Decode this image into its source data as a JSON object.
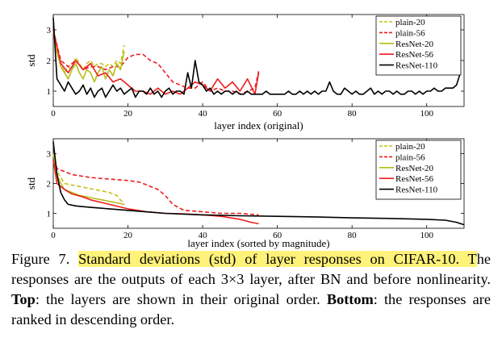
{
  "colors": {
    "plain20": "#c2c21c",
    "plain56": "#ee1c1c",
    "resnet20": "#b5bd1b",
    "resnet56": "#ee1c1c",
    "resnet110": "#000000",
    "highlight": "#fff27a"
  },
  "chart_data": [
    {
      "type": "line",
      "panel": "top",
      "xlabel": "layer index (original)",
      "ylabel": "std",
      "xlim": [
        0,
        110
      ],
      "ylim": [
        0.5,
        3.5
      ],
      "xticks": [
        0,
        20,
        40,
        60,
        80,
        100
      ],
      "yticks": [
        1,
        2,
        3
      ],
      "legend": [
        "plain-20",
        "plain-56",
        "ResNet-20",
        "ResNet-56",
        "ResNet-110"
      ],
      "legend_position": "top-right",
      "series": [
        {
          "name": "plain-20",
          "style": "dashed",
          "x": [
            0,
            1,
            2,
            3,
            4,
            5,
            6,
            7,
            8,
            9,
            10,
            11,
            12,
            13,
            14,
            15,
            16,
            17,
            18,
            19
          ],
          "y": [
            3.0,
            2.2,
            1.9,
            1.6,
            1.8,
            1.7,
            2.1,
            1.9,
            1.7,
            1.9,
            2.0,
            1.8,
            1.9,
            1.9,
            1.8,
            1.9,
            1.8,
            2.0,
            1.9,
            2.5
          ]
        },
        {
          "name": "plain-56",
          "style": "dashed",
          "x": [
            0,
            2,
            4,
            6,
            8,
            10,
            12,
            14,
            16,
            18,
            20,
            22,
            24,
            26,
            28,
            30,
            32,
            34,
            36,
            38,
            40,
            42,
            44,
            46,
            48,
            50,
            52,
            54,
            55
          ],
          "y": [
            3.0,
            2.0,
            1.8,
            2.0,
            1.7,
            1.8,
            1.8,
            1.7,
            1.8,
            1.8,
            2.1,
            2.2,
            2.2,
            2.0,
            1.9,
            1.6,
            1.3,
            1.2,
            1.1,
            1.1,
            1.3,
            1.0,
            1.1,
            1.0,
            1.0,
            0.9,
            1.0,
            1.1,
            1.65
          ]
        },
        {
          "name": "ResNet-20",
          "style": "solid",
          "x": [
            0,
            1,
            2,
            3,
            4,
            5,
            6,
            7,
            8,
            9,
            10,
            11,
            12,
            13,
            14,
            15,
            16,
            17,
            18,
            19
          ],
          "y": [
            3.0,
            2.3,
            1.8,
            1.6,
            1.4,
            1.7,
            1.9,
            1.6,
            1.4,
            1.7,
            1.6,
            1.3,
            1.6,
            1.8,
            1.4,
            1.7,
            1.5,
            1.9,
            1.7,
            2.3
          ]
        },
        {
          "name": "ResNet-56",
          "style": "solid",
          "x": [
            0,
            2,
            4,
            6,
            8,
            10,
            12,
            14,
            16,
            18,
            20,
            22,
            24,
            26,
            28,
            30,
            32,
            34,
            36,
            38,
            40,
            42,
            44,
            46,
            48,
            50,
            52,
            54,
            55
          ],
          "y": [
            3.0,
            1.9,
            1.6,
            2.0,
            1.7,
            1.9,
            1.5,
            1.6,
            1.3,
            1.4,
            1.2,
            1.0,
            1.0,
            0.9,
            1.1,
            0.9,
            1.0,
            0.9,
            1.1,
            1.3,
            1.2,
            1.0,
            1.4,
            1.1,
            1.3,
            1.0,
            1.4,
            0.9,
            1.6
          ]
        },
        {
          "name": "ResNet-110",
          "style": "solid",
          "x": [
            0,
            1,
            2,
            3,
            4,
            5,
            6,
            7,
            8,
            9,
            10,
            11,
            12,
            13,
            14,
            15,
            16,
            17,
            18,
            19,
            20,
            21,
            22,
            23,
            24,
            25,
            26,
            27,
            28,
            29,
            30,
            31,
            32,
            33,
            34,
            35,
            36,
            37,
            38,
            39,
            40,
            41,
            42,
            43,
            44,
            45,
            46,
            47,
            48,
            49,
            50,
            51,
            52,
            53,
            54,
            55,
            56,
            57,
            58,
            59,
            60,
            61,
            62,
            63,
            64,
            65,
            66,
            67,
            68,
            69,
            70,
            71,
            72,
            73,
            74,
            75,
            76,
            77,
            78,
            79,
            80,
            81,
            82,
            83,
            84,
            85,
            86,
            87,
            88,
            89,
            90,
            91,
            92,
            93,
            94,
            95,
            96,
            97,
            98,
            99,
            100,
            101,
            102,
            103,
            104,
            105,
            106,
            107,
            108,
            109
          ],
          "y": [
            3.4,
            1.4,
            1.2,
            1.0,
            1.3,
            1.1,
            0.9,
            1.0,
            1.2,
            0.9,
            1.1,
            0.8,
            1.0,
            1.1,
            0.8,
            1.0,
            1.2,
            1.0,
            1.1,
            0.9,
            1.0,
            1.1,
            0.8,
            1.0,
            1.0,
            0.9,
            1.1,
            0.9,
            1.0,
            0.8,
            1.0,
            1.1,
            0.9,
            1.0,
            1.0,
            0.9,
            1.6,
            1.1,
            2.0,
            1.3,
            1.2,
            1.0,
            1.1,
            0.9,
            1.0,
            0.9,
            1.0,
            1.0,
            0.9,
            1.0,
            0.9,
            0.9,
            1.0,
            0.9,
            0.9,
            0.9,
            0.9,
            1.0,
            0.9,
            0.9,
            0.9,
            0.9,
            0.9,
            1.0,
            0.9,
            0.9,
            1.0,
            0.9,
            1.0,
            0.9,
            1.0,
            0.9,
            1.0,
            1.0,
            1.3,
            1.0,
            0.9,
            0.9,
            1.1,
            1.0,
            0.9,
            1.0,
            0.9,
            0.9,
            1.0,
            1.1,
            0.9,
            1.0,
            0.9,
            1.0,
            1.0,
            0.9,
            1.0,
            0.9,
            0.9,
            1.0,
            1.0,
            0.9,
            1.0,
            0.9,
            1.0,
            1.0,
            1.1,
            1.0,
            1.0,
            1.1,
            1.1,
            1.1,
            1.2,
            1.6
          ]
        }
      ]
    },
    {
      "type": "line",
      "panel": "bottom",
      "xlabel": "layer index (sorted by magnitude)",
      "ylabel": "std",
      "xlim": [
        0,
        110
      ],
      "ylim": [
        0.5,
        3.5
      ],
      "xticks": [
        0,
        20,
        40,
        60,
        80,
        100
      ],
      "yticks": [
        1,
        2,
        3
      ],
      "legend": [
        "plain-20",
        "plain-56",
        "ResNet-20",
        "ResNet-56",
        "ResNet-110"
      ],
      "legend_position": "top-right",
      "series": [
        {
          "name": "plain-20",
          "style": "dashed",
          "x": [
            0,
            1,
            2,
            3,
            5,
            7,
            9,
            11,
            13,
            15,
            17,
            19
          ],
          "y": [
            3.0,
            2.4,
            2.2,
            2.0,
            1.95,
            1.9,
            1.85,
            1.8,
            1.75,
            1.7,
            1.6,
            1.3
          ]
        },
        {
          "name": "plain-56",
          "style": "dashed",
          "x": [
            0,
            1,
            3,
            5,
            10,
            15,
            20,
            23,
            25,
            28,
            30,
            32,
            35,
            40,
            45,
            50,
            55
          ],
          "y": [
            3.0,
            2.5,
            2.4,
            2.3,
            2.2,
            2.15,
            2.1,
            2.05,
            1.95,
            1.8,
            1.6,
            1.3,
            1.1,
            1.05,
            1.0,
            1.0,
            0.95
          ]
        },
        {
          "name": "ResNet-20",
          "style": "solid",
          "x": [
            0,
            1,
            2,
            3,
            5,
            7,
            9,
            11,
            13,
            15,
            17,
            19
          ],
          "y": [
            3.0,
            2.3,
            2.0,
            1.8,
            1.7,
            1.6,
            1.55,
            1.5,
            1.45,
            1.4,
            1.35,
            1.3
          ]
        },
        {
          "name": "ResNet-56",
          "style": "solid",
          "x": [
            0,
            1,
            2,
            3,
            5,
            8,
            10,
            15,
            20,
            25,
            30,
            35,
            40,
            45,
            50,
            53,
            55
          ],
          "y": [
            2.8,
            2.0,
            1.9,
            1.8,
            1.65,
            1.55,
            1.45,
            1.3,
            1.15,
            1.05,
            1.0,
            0.98,
            0.95,
            0.9,
            0.8,
            0.7,
            0.65
          ]
        },
        {
          "name": "ResNet-110",
          "style": "solid",
          "x": [
            0,
            1,
            2,
            3,
            4,
            6,
            10,
            15,
            20,
            30,
            40,
            50,
            60,
            70,
            80,
            90,
            100,
            105,
            108,
            110
          ],
          "y": [
            3.4,
            2.3,
            1.7,
            1.45,
            1.3,
            1.25,
            1.2,
            1.15,
            1.1,
            1.0,
            0.95,
            0.92,
            0.9,
            0.88,
            0.85,
            0.83,
            0.8,
            0.77,
            0.7,
            0.62
          ]
        }
      ]
    }
  ],
  "caption": {
    "fig_label": "Figure 7.",
    "highlight_1": "Standard deviations (std) of layer responses on CIFAR-",
    "highlight_2": "10. T",
    "rest_1": "he responses are the outputs of each 3×3 layer, after BN and before nonlinearity.",
    "top_label": "Top",
    "rest_2": ": the layers are shown in their original order.",
    "bottom_label": "Bottom",
    "rest_3": ": the responses are ranked in descending order."
  }
}
